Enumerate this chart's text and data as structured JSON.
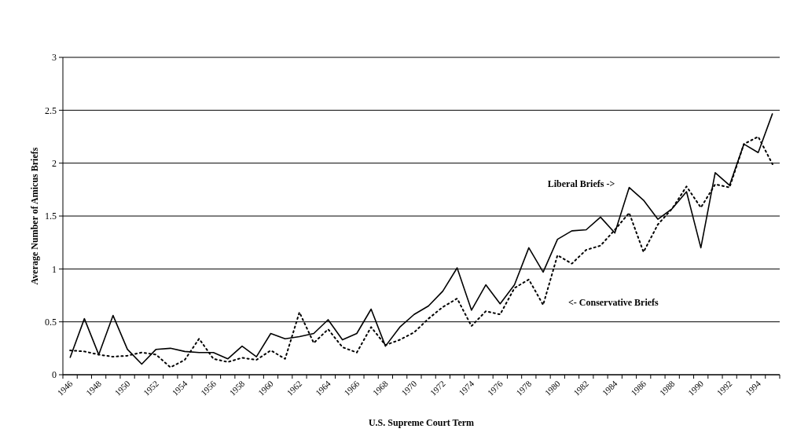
{
  "chart_data": {
    "type": "line",
    "xlabel": "U.S. Supreme Court Term",
    "ylabel": "Average Number of Amicus Briefs",
    "categories": [
      "1946",
      null,
      "1948",
      null,
      "1950",
      null,
      "1952",
      null,
      "1954",
      null,
      "1956",
      null,
      "1958",
      null,
      "1960",
      null,
      "1962",
      null,
      "1964",
      null,
      "1966",
      null,
      "1968",
      null,
      "1970",
      null,
      "1972",
      null,
      "1974",
      null,
      "1976",
      null,
      "1978",
      null,
      "1980",
      null,
      "1982",
      null,
      "1984",
      null,
      "1986",
      null,
      "1988",
      null,
      "1990",
      null,
      "1992",
      null,
      "1994",
      null
    ],
    "series": [
      {
        "color": "#000000",
        "line_style": "solid",
        "values": [
          0.16,
          0.53,
          0.19,
          0.56,
          0.24,
          0.1,
          0.24,
          0.25,
          0.22,
          0.21,
          0.21,
          0.15,
          0.27,
          0.17,
          0.39,
          0.34,
          0.36,
          0.39,
          0.52,
          0.33,
          0.39,
          0.62,
          0.27,
          0.45,
          0.57,
          0.65,
          0.79,
          1.01,
          0.61,
          0.85,
          0.67,
          0.85,
          1.2,
          0.97,
          1.28,
          1.36,
          1.37,
          1.49,
          1.34,
          1.77,
          1.65,
          1.47,
          1.57,
          1.73,
          1.2,
          1.91,
          1.79,
          2.18,
          2.1,
          2.47
        ]
      },
      {
        "color": "#000000",
        "line_style": "dotted",
        "values": [
          0.23,
          0.22,
          0.19,
          0.17,
          0.18,
          0.21,
          0.19,
          0.07,
          0.14,
          0.34,
          0.15,
          0.12,
          0.16,
          0.14,
          0.23,
          0.15,
          0.59,
          0.3,
          0.43,
          0.26,
          0.21,
          0.45,
          0.28,
          0.33,
          0.4,
          0.53,
          0.64,
          0.72,
          0.46,
          0.6,
          0.57,
          0.82,
          0.9,
          0.66,
          1.13,
          1.05,
          1.18,
          1.22,
          1.37,
          1.53,
          1.16,
          1.42,
          1.57,
          1.78,
          1.58,
          1.8,
          1.77,
          2.18,
          2.25,
          1.99
        ]
      }
    ],
    "ylim": [
      0,
      3
    ],
    "yticks": [
      0,
      0.5,
      1,
      1.5,
      2,
      2.5,
      3
    ],
    "grid": "y",
    "marker": "none",
    "annotations": [
      "Liberal Briefs ->",
      "<- Conservative Briefs"
    ]
  }
}
